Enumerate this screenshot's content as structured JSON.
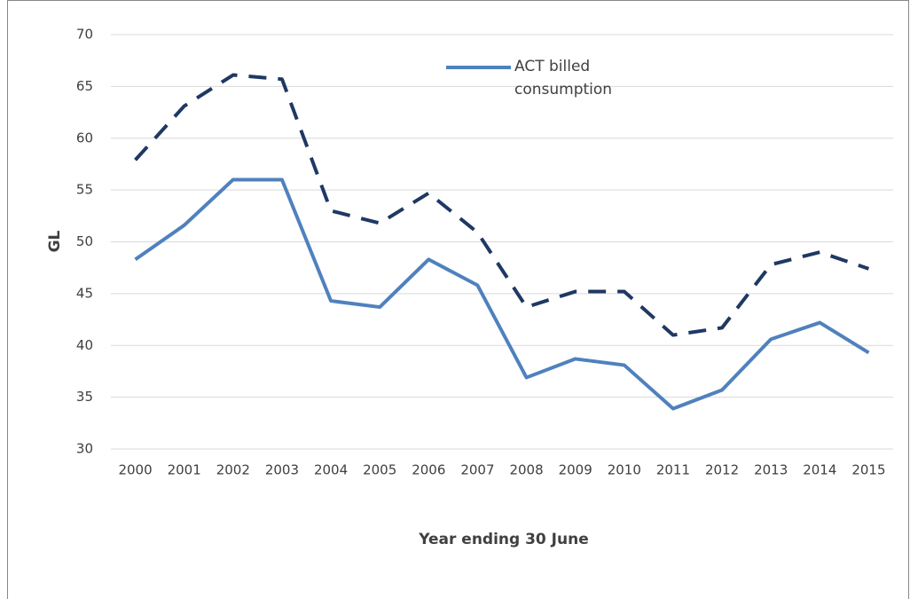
{
  "chart_data": {
    "type": "line",
    "x_label": "Year ending 30 June",
    "y_label": "GL",
    "categories": [
      "2000",
      "2001",
      "2002",
      "2003",
      "2004",
      "2005",
      "2006",
      "2007",
      "2008",
      "2009",
      "2010",
      "2011",
      "2012",
      "2013",
      "2014",
      "2015"
    ],
    "series": [
      {
        "name": "ACT billed consumption",
        "color": "#4f81bd",
        "dashed": false,
        "values": [
          48.3,
          51.6,
          56.0,
          56.0,
          44.3,
          43.7,
          48.3,
          45.8,
          36.9,
          38.7,
          38.1,
          33.9,
          35.7,
          40.6,
          42.2,
          39.3
        ]
      },
      {
        "color": "#1f3864",
        "dashed": true,
        "values": [
          57.9,
          63.1,
          66.1,
          65.7,
          53.0,
          51.8,
          54.7,
          50.9,
          43.7,
          45.2,
          45.2,
          41.0,
          41.7,
          47.8,
          49.0,
          47.4
        ]
      }
    ],
    "ylim": [
      30,
      70
    ],
    "yticks": [
      30,
      35,
      40,
      45,
      50,
      55,
      60,
      65,
      70
    ],
    "grid": true
  }
}
